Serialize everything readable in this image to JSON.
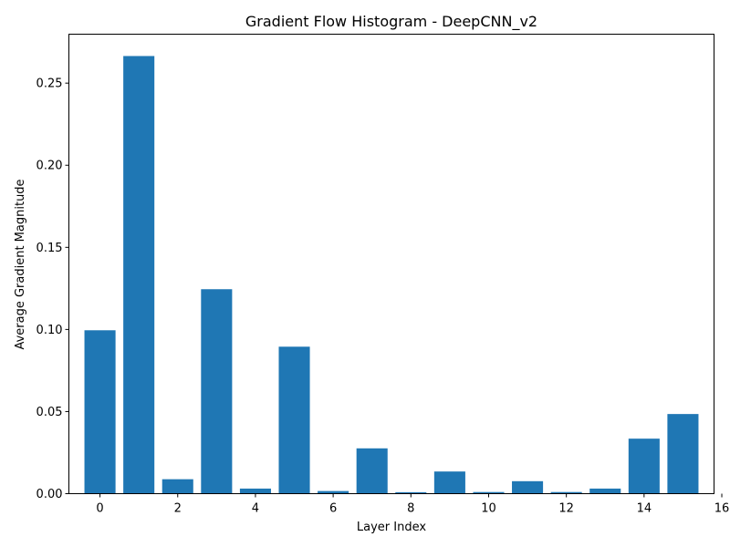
{
  "chart_data": {
    "type": "bar",
    "title": "Gradient Flow Histogram - DeepCNN_v2",
    "xlabel": "Layer Index",
    "ylabel": "Average Gradient Magnitude",
    "categories": [
      0,
      1,
      2,
      3,
      4,
      5,
      6,
      7,
      8,
      9,
      10,
      11,
      12,
      13,
      14,
      15
    ],
    "values": [
      0.0995,
      0.2665,
      0.0088,
      0.1245,
      0.0031,
      0.0895,
      0.0016,
      0.0276,
      0.0009,
      0.0135,
      0.001,
      0.0076,
      0.001,
      0.0031,
      0.0335,
      0.0485
    ],
    "xlim": [
      -0.8,
      15.8
    ],
    "ylim": [
      0,
      0.2798
    ],
    "xticks": [
      0,
      2,
      4,
      6,
      8,
      10,
      12,
      14,
      16
    ],
    "yticks": [
      0.0,
      0.05,
      0.1,
      0.15,
      0.2,
      0.25
    ],
    "ytick_labels": [
      "0.00",
      "0.05",
      "0.10",
      "0.15",
      "0.20",
      "0.25"
    ],
    "bar_color": "#1f77b4",
    "grid": false,
    "legend": "none"
  }
}
